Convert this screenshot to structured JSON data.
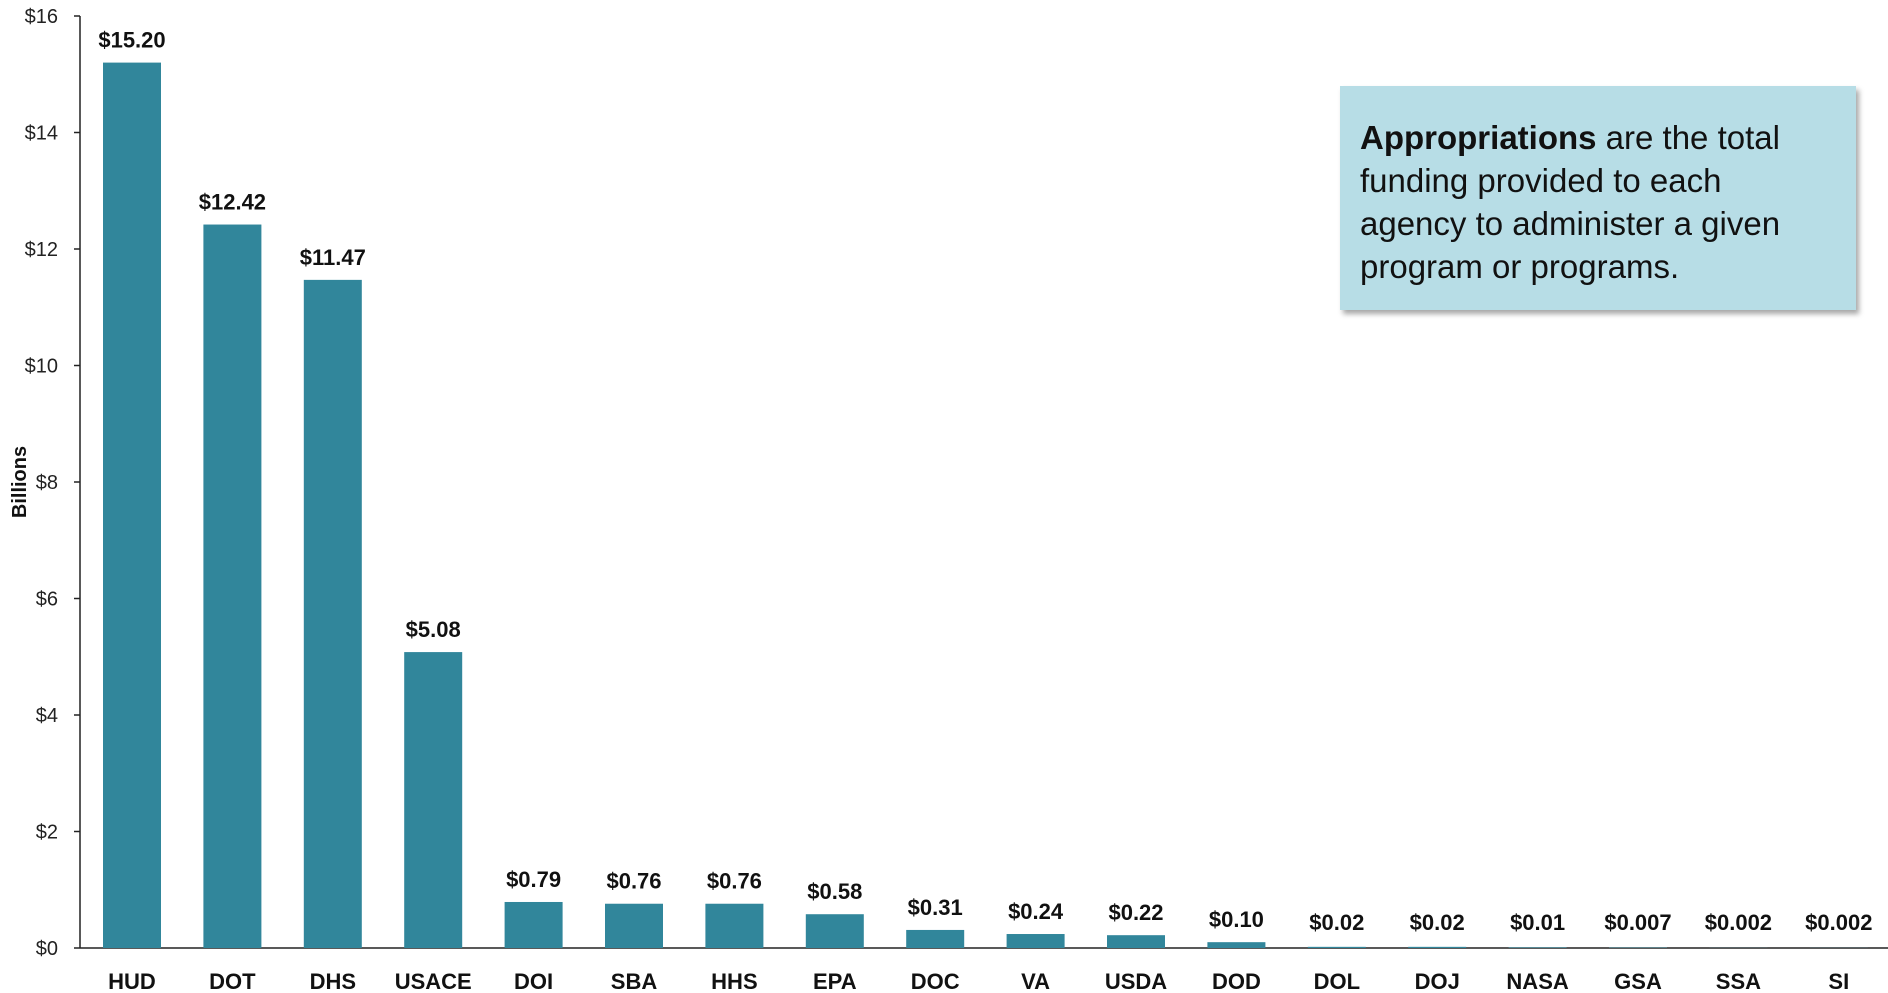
{
  "chart_data": {
    "type": "bar",
    "ylabel": "Billions",
    "ylim": [
      0,
      16
    ],
    "yticks": [
      0,
      2,
      4,
      6,
      8,
      10,
      12,
      14,
      16
    ],
    "ytick_labels": [
      "$0",
      "$2",
      "$4",
      "$6",
      "$8",
      "$10",
      "$12",
      "$14",
      "$16"
    ],
    "categories": [
      "HUD",
      "DOT",
      "DHS",
      "USACE",
      "DOI",
      "SBA",
      "HHS",
      "EPA",
      "DOC",
      "VA",
      "USDA",
      "DOD",
      "DOL",
      "DOJ",
      "NASA",
      "GSA",
      "SSA",
      "SI"
    ],
    "values": [
      15.2,
      12.42,
      11.47,
      5.08,
      0.79,
      0.76,
      0.76,
      0.58,
      0.31,
      0.24,
      0.22,
      0.1,
      0.02,
      0.02,
      0.01,
      0.007,
      0.002,
      0.002
    ],
    "data_labels": [
      "$15.20",
      "$12.42",
      "$11.47",
      "$5.08",
      "$0.79",
      "$0.76",
      "$0.76",
      "$0.58",
      "$0.31",
      "$0.24",
      "$0.22",
      "$0.10",
      "$0.02",
      "$0.02",
      "$0.01",
      "$0.007",
      "$0.002",
      "$0.002"
    ],
    "bar_color": "#31869b",
    "grid": false,
    "legend": "none"
  },
  "callout": {
    "bold_term": "Appropriations",
    "text": " are the total funding provided to each agency to administer a given program or programs.",
    "background": "#b7dde6"
  }
}
